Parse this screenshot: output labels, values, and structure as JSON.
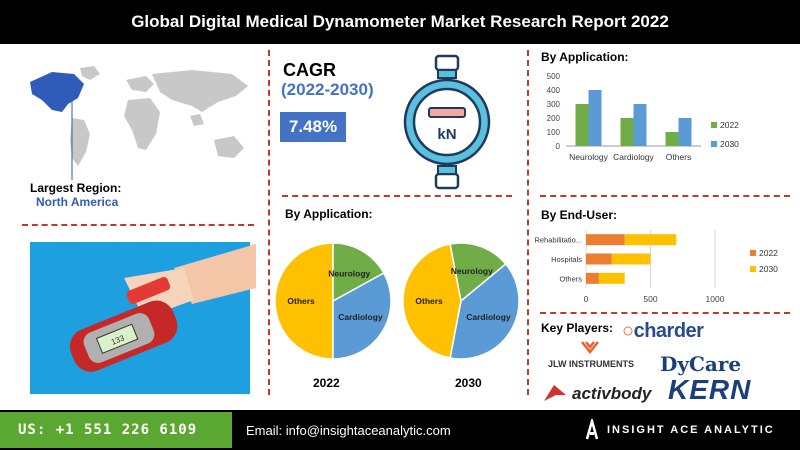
{
  "header": {
    "title": "Global Digital Medical Dynamometer Market Research Report 2022"
  },
  "region": {
    "label": "Largest Region:",
    "value": "North America"
  },
  "cagr": {
    "label": "CAGR",
    "period": "(2022-2030)",
    "value": "7.48%",
    "icon_text": "kN"
  },
  "colors": {
    "c2022": "#70ad47",
    "c2030": "#5b9bd5",
    "others": "#ffc000",
    "neuro": "#70ad47",
    "cardio": "#5b9bd5",
    "rehab": "#ed7d31",
    "accent": "#c0392b",
    "cagr_box": "#4472c4"
  },
  "sections": {
    "by_application": "By Application:",
    "by_application_pies": "By Application:",
    "by_end_user": "By End-User:",
    "key_players": "Key Players:"
  },
  "key_players": [
    "charder",
    "JLW INSTRUMENTS",
    "DyCare",
    "activbody",
    "KERN"
  ],
  "footer": {
    "phone": "US: +1 551 226 6109",
    "email": "Email: info@insightaceanalytic.com",
    "brand": "INSIGHT ACE ANALYTIC"
  },
  "chart_data": [
    {
      "type": "bar",
      "title": "By Application:",
      "categories": [
        "Neurology",
        "Cardiology",
        "Others"
      ],
      "series": [
        {
          "name": "2022",
          "values": [
            300,
            200,
            100
          ]
        },
        {
          "name": "2030",
          "values": [
            400,
            300,
            200
          ]
        }
      ],
      "ylim": [
        0,
        500
      ],
      "yticks": [
        "0",
        "100",
        "200",
        "300",
        "400",
        "500"
      ],
      "grid": false,
      "legend": "right"
    },
    {
      "type": "bar",
      "orientation": "horizontal",
      "stacked": true,
      "title": "By End-User:",
      "categories": [
        "Rehabilitatio...",
        "Hospitals",
        "Others"
      ],
      "series": [
        {
          "name": "2022",
          "values": [
            300,
            200,
            100
          ]
        },
        {
          "name": "2030",
          "values": [
            400,
            300,
            200
          ]
        }
      ],
      "xlim": [
        0,
        1000
      ],
      "xticks": [
        "0",
        "500",
        "1000"
      ],
      "grid": true,
      "legend": "right"
    },
    {
      "type": "pie",
      "label": "2022",
      "slices": [
        {
          "name": "Others",
          "value": 50
        },
        {
          "name": "Neurology",
          "value": 17
        },
        {
          "name": "Cardiology",
          "value": 33
        }
      ]
    },
    {
      "type": "pie",
      "label": "2030",
      "slices": [
        {
          "name": "Others",
          "value": 44
        },
        {
          "name": "Neurology",
          "value": 17
        },
        {
          "name": "Cardiology",
          "value": 39
        }
      ]
    }
  ]
}
